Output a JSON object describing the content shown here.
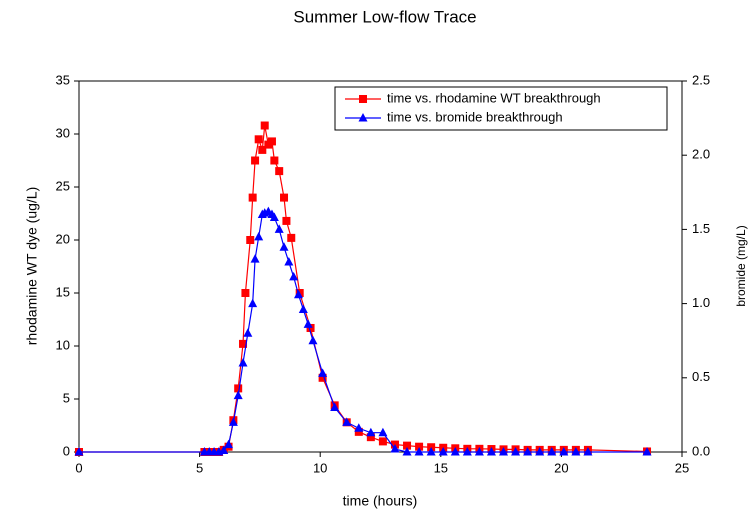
{
  "chart_data": {
    "type": "line",
    "title": "Summer Low-flow Trace",
    "xlabel": "time (hours)",
    "ylabel": "rhodamine WT dye (ug/L)",
    "y2label": "bromide (mg/L)",
    "xlim": [
      0,
      25
    ],
    "xticks": [
      0,
      5,
      10,
      15,
      20,
      25
    ],
    "ylim": [
      0,
      35
    ],
    "yticks": [
      0,
      5,
      10,
      15,
      20,
      25,
      30,
      35
    ],
    "y2lim": [
      0,
      2.5
    ],
    "y2ticks": [
      {
        "value": 0,
        "label": "0.0"
      },
      0.5,
      {
        "value": 1,
        "label": "1.0"
      },
      1.5,
      {
        "value": 2,
        "label": "2.0"
      },
      2.5
    ],
    "legend": "upper right",
    "series": [
      {
        "name": "time vs. rhodamine WT breakthrough",
        "color": "#ff0000",
        "marker": "square",
        "axis": "y",
        "x": [
          0,
          5.2,
          5.4,
          5.6,
          5.8,
          6.0,
          6.2,
          6.4,
          6.6,
          6.8,
          6.9,
          7.1,
          7.2,
          7.3,
          7.45,
          7.6,
          7.7,
          7.85,
          8.0,
          8.1,
          8.3,
          8.5,
          8.6,
          8.8,
          9.15,
          9.6,
          10.1,
          10.6,
          11.1,
          11.6,
          12.1,
          12.6,
          13.1,
          13.6,
          14.1,
          14.6,
          15.1,
          15.6,
          16.1,
          16.6,
          17.1,
          17.6,
          18.1,
          18.6,
          19.1,
          19.6,
          20.1,
          20.6,
          21.1,
          23.55
        ],
        "values": [
          0,
          0,
          0,
          0,
          0,
          0.2,
          0.5,
          3,
          6,
          10.2,
          15,
          20,
          24,
          27.5,
          29.5,
          28.5,
          30.8,
          29,
          29.3,
          27.5,
          26.5,
          24,
          21.8,
          20.2,
          15,
          11.7,
          7,
          4.4,
          2.8,
          1.9,
          1.4,
          1,
          0.7,
          0.6,
          0.5,
          0.45,
          0.4,
          0.35,
          0.3,
          0.3,
          0.28,
          0.25,
          0.25,
          0.2,
          0.2,
          0.2,
          0.2,
          0.2,
          0.2,
          0.05
        ]
      },
      {
        "name": "time vs. bromide breakthrough",
        "color": "#0000ff",
        "marker": "triangle",
        "axis": "y2",
        "x": [
          0,
          5.2,
          5.4,
          5.6,
          5.8,
          6.0,
          6.2,
          6.4,
          6.6,
          6.8,
          7.0,
          7.2,
          7.3,
          7.45,
          7.6,
          7.7,
          7.85,
          8.0,
          8.1,
          8.3,
          8.5,
          8.7,
          8.9,
          9.1,
          9.3,
          9.5,
          9.7,
          10.1,
          10.6,
          11.1,
          11.6,
          12.1,
          12.6,
          13.1,
          13.6,
          14.1,
          14.6,
          15.1,
          15.6,
          16.1,
          16.6,
          17.1,
          17.6,
          18.1,
          18.6,
          19.1,
          19.6,
          20.1,
          20.6,
          21.1,
          23.55
        ],
        "values": [
          0,
          0,
          0,
          0,
          0,
          0.01,
          0.05,
          0.2,
          0.38,
          0.6,
          0.8,
          1.0,
          1.3,
          1.45,
          1.6,
          1.61,
          1.62,
          1.6,
          1.58,
          1.5,
          1.38,
          1.28,
          1.18,
          1.06,
          0.96,
          0.86,
          0.75,
          0.53,
          0.3,
          0.2,
          0.16,
          0.13,
          0.13,
          0.02,
          0,
          0,
          0,
          0,
          0,
          0,
          0,
          0,
          0,
          0,
          0,
          0,
          0,
          0,
          0,
          0,
          0
        ]
      }
    ]
  }
}
